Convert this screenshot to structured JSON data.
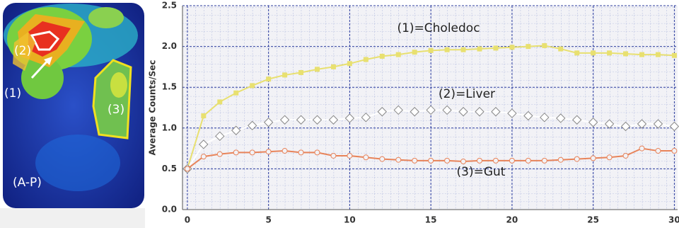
{
  "image": {
    "labels": [
      "(2)",
      "(1)",
      "(3)",
      "(A-P)"
    ]
  },
  "chart_data": {
    "type": "line",
    "y_label": "Average Counts/Sec",
    "x": [
      0,
      1,
      2,
      3,
      4,
      5,
      6,
      7,
      8,
      9,
      10,
      11,
      12,
      13,
      14,
      15,
      16,
      17,
      18,
      19,
      20,
      21,
      22,
      23,
      24,
      25,
      26,
      27,
      28,
      29,
      30
    ],
    "series": [
      {
        "name": "(1)=Choledoc",
        "color": "#e8e070",
        "marker": "square",
        "values": [
          0.5,
          1.15,
          1.32,
          1.43,
          1.52,
          1.6,
          1.65,
          1.68,
          1.72,
          1.75,
          1.79,
          1.84,
          1.88,
          1.9,
          1.93,
          1.95,
          1.96,
          1.96,
          1.97,
          1.98,
          1.99,
          2.0,
          2.01,
          1.97,
          1.92,
          1.92,
          1.92,
          1.91,
          1.9,
          1.9,
          1.89
        ]
      },
      {
        "name": "(2)=Liver",
        "color": "#ffffff",
        "marker": "diamond",
        "values": [
          0.5,
          0.8,
          0.9,
          0.97,
          1.03,
          1.07,
          1.1,
          1.1,
          1.1,
          1.1,
          1.12,
          1.13,
          1.2,
          1.22,
          1.2,
          1.22,
          1.22,
          1.2,
          1.2,
          1.2,
          1.18,
          1.15,
          1.13,
          1.12,
          1.1,
          1.07,
          1.05,
          1.02,
          1.05,
          1.05,
          1.02
        ]
      },
      {
        "name": "(3)=Gut",
        "color": "#e8845a",
        "marker": "circle",
        "values": [
          0.5,
          0.65,
          0.68,
          0.7,
          0.7,
          0.71,
          0.72,
          0.7,
          0.7,
          0.66,
          0.66,
          0.64,
          0.62,
          0.61,
          0.6,
          0.6,
          0.6,
          0.59,
          0.6,
          0.6,
          0.6,
          0.6,
          0.6,
          0.61,
          0.62,
          0.63,
          0.64,
          0.66,
          0.75,
          0.72,
          0.72
        ]
      }
    ],
    "xlim": [
      -0.3,
      30.2
    ],
    "ylim": [
      0,
      2.5
    ],
    "xticks": [
      0,
      5,
      10,
      15,
      20,
      25,
      30
    ],
    "yticks": [
      {
        "value": 0,
        "label": "0.0"
      },
      {
        "value": 0.5,
        "label": "0.5"
      },
      {
        "value": 1,
        "label": "1.0"
      },
      {
        "value": 1.5,
        "label": "1.5"
      },
      {
        "value": 2,
        "label": "2.0"
      },
      {
        "value": 2.5,
        "label": "2.5"
      }
    ],
    "grid": true
  }
}
